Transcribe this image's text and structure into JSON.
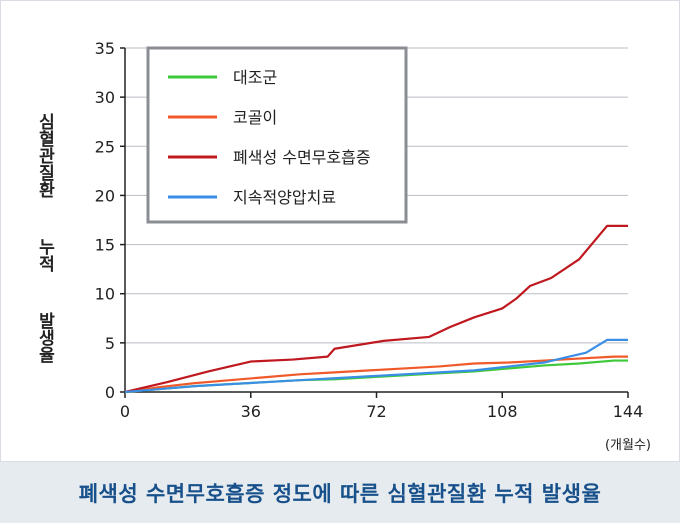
{
  "caption": "폐색성 수면무호흡증 정도에 따른 심혈관질환 누적 발생율",
  "chart_data": {
    "type": "line",
    "title": "",
    "ylabel": "심혈관질환  누적  발생율",
    "xlabel": "(개월수)",
    "xlim": [
      0,
      144
    ],
    "ylim": [
      0,
      35
    ],
    "xticks": [
      "0",
      "36",
      "72",
      "108",
      "144"
    ],
    "yticks": [
      "0",
      "5",
      "10",
      "15",
      "20",
      "25",
      "30",
      "35"
    ],
    "grid": true,
    "legend_position": "top-left",
    "series": [
      {
        "name": "대조군",
        "color": "#3fc93a",
        "x": [
          0,
          10,
          20,
          30,
          40,
          50,
          60,
          70,
          80,
          90,
          100,
          110,
          120,
          130,
          140,
          144
        ],
        "y": [
          0,
          0.3,
          0.6,
          0.8,
          1.0,
          1.2,
          1.3,
          1.5,
          1.7,
          1.9,
          2.1,
          2.4,
          2.7,
          2.9,
          3.2,
          3.2
        ]
      },
      {
        "name": "코골이",
        "color": "#f05a2a",
        "x": [
          0,
          10,
          20,
          30,
          40,
          50,
          60,
          70,
          80,
          90,
          100,
          110,
          120,
          130,
          140,
          144
        ],
        "y": [
          0,
          0.5,
          0.9,
          1.2,
          1.5,
          1.8,
          2.0,
          2.2,
          2.4,
          2.6,
          2.9,
          3.0,
          3.2,
          3.4,
          3.6,
          3.6
        ]
      },
      {
        "name": "폐색성 수면무호흡증",
        "color": "#c0181f",
        "x": [
          0,
          12,
          24,
          36,
          48,
          58,
          60,
          74,
          87,
          93,
          100,
          108,
          112,
          116,
          122,
          130,
          138,
          144
        ],
        "y": [
          0,
          1.0,
          2.1,
          3.1,
          3.3,
          3.6,
          4.4,
          5.2,
          5.6,
          6.6,
          7.6,
          8.5,
          9.5,
          10.8,
          11.6,
          13.5,
          16.9,
          16.9
        ]
      },
      {
        "name": "지속적양압치료",
        "color": "#3a8ee6",
        "x": [
          0,
          10,
          20,
          30,
          40,
          50,
          60,
          70,
          80,
          90,
          100,
          110,
          120,
          126,
          132,
          138,
          144
        ],
        "y": [
          0,
          0.3,
          0.6,
          0.8,
          1.0,
          1.2,
          1.4,
          1.6,
          1.8,
          2.0,
          2.2,
          2.6,
          3.0,
          3.5,
          4.0,
          5.3,
          5.3
        ]
      }
    ]
  }
}
